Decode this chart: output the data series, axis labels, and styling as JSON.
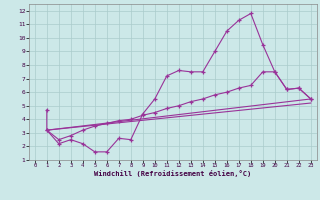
{
  "bg_color": "#cce8e8",
  "grid_color": "#aacccc",
  "line_color": "#993399",
  "xlabel": "Windchill (Refroidissement éolien,°C)",
  "xlim": [
    -0.5,
    23.5
  ],
  "ylim": [
    1,
    12.5
  ],
  "yticks": [
    1,
    2,
    3,
    4,
    5,
    6,
    7,
    8,
    9,
    10,
    11,
    12
  ],
  "xticks": [
    0,
    1,
    2,
    3,
    4,
    5,
    6,
    7,
    8,
    9,
    10,
    11,
    12,
    13,
    14,
    15,
    16,
    17,
    18,
    19,
    20,
    21,
    22,
    23
  ],
  "line1_x": [
    1,
    1,
    2,
    3,
    4,
    5,
    6,
    7,
    8,
    9,
    10,
    11,
    12,
    13,
    14,
    15,
    16,
    17,
    18,
    19,
    20,
    21,
    22,
    23
  ],
  "line1_y": [
    4.7,
    3.2,
    2.2,
    2.5,
    2.2,
    1.6,
    1.6,
    2.6,
    2.5,
    4.4,
    5.5,
    7.2,
    7.6,
    7.5,
    7.5,
    9.0,
    10.5,
    11.3,
    11.8,
    9.5,
    7.5,
    6.2,
    6.3,
    5.5
  ],
  "line2_x": [
    1,
    2,
    3,
    4,
    5,
    6,
    7,
    8,
    9,
    10,
    11,
    12,
    13,
    14,
    15,
    16,
    17,
    18,
    19,
    20,
    21,
    22,
    23
  ],
  "line2_y": [
    3.2,
    2.5,
    2.8,
    3.2,
    3.5,
    3.7,
    3.9,
    4.0,
    4.3,
    4.5,
    4.8,
    5.0,
    5.3,
    5.5,
    5.8,
    6.0,
    6.3,
    6.5,
    7.5,
    7.5,
    6.2,
    6.3,
    5.5
  ],
  "line3_x": [
    1,
    23
  ],
  "line3_y": [
    3.2,
    5.2
  ],
  "line4_x": [
    1,
    23
  ],
  "line4_y": [
    3.2,
    5.5
  ]
}
